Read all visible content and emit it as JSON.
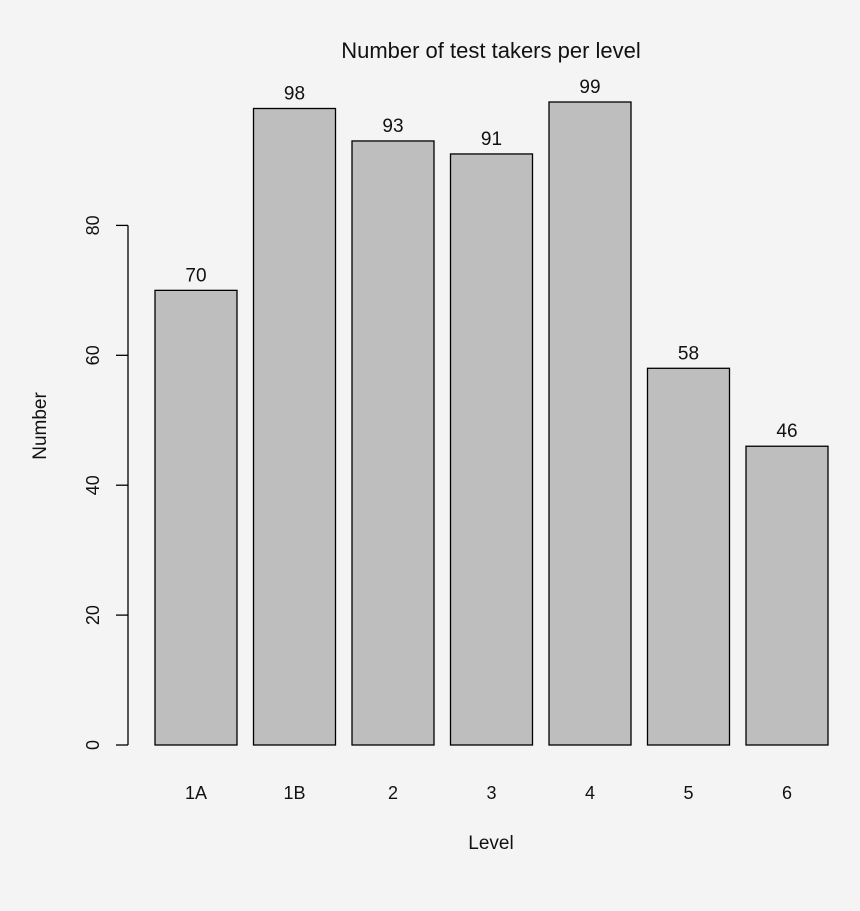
{
  "chart_data": {
    "type": "bar",
    "title": "Number of test takers per level",
    "xlabel": "Level",
    "ylabel": "Number",
    "categories": [
      "1A",
      "1B",
      "2",
      "3",
      "4",
      "5",
      "6"
    ],
    "values": [
      70,
      98,
      93,
      91,
      99,
      58,
      46
    ],
    "data_labels": [
      "70",
      "98",
      "93",
      "91",
      "99",
      "58",
      "46"
    ],
    "ylim": [
      0,
      99
    ],
    "yticks": [
      0,
      20,
      40,
      60,
      80
    ],
    "grid": false,
    "bar_color": "#bebebe",
    "bar_edge_color": "#000000",
    "background": "#f4f4f4"
  }
}
